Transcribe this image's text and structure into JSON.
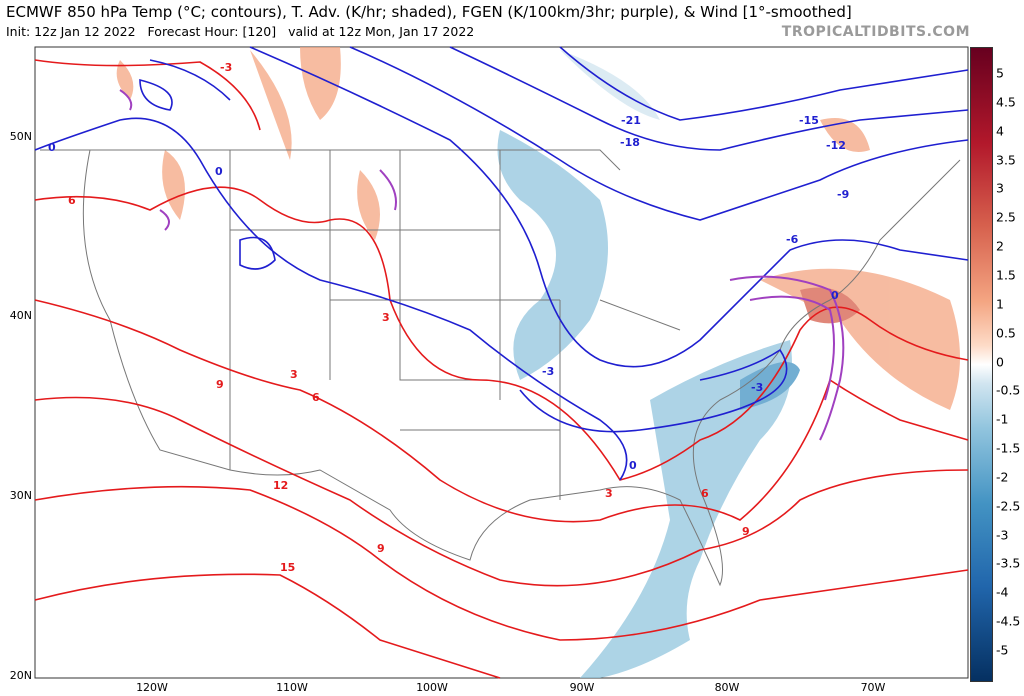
{
  "header": {
    "title": "ECMWF 850 hPa Temp (°C; contours), T. Adv. (K/hr; shaded), FGEN (K/100km/3hr; purple), & Wind [1°-smoothed]",
    "init": "Init: 12z Jan 12 2022",
    "forecast_hour": "Forecast Hour: [120]",
    "valid": "valid at 12z Mon, Jan 17 2022",
    "credit": "TROPICALTIDBITS.COM"
  },
  "map": {
    "lat_labels": [
      "50N",
      "40N",
      "30N",
      "20N"
    ],
    "lon_labels": [
      "120W",
      "110W",
      "100W",
      "90W",
      "80W",
      "70W"
    ],
    "contour_labels": [
      "-3",
      "0",
      "0",
      "6",
      "-21",
      "-18",
      "-15",
      "-12",
      "-9",
      "-6",
      "3",
      "3",
      "-3",
      "-3",
      "9",
      "6",
      "0",
      "0",
      "3",
      "6",
      "12",
      "9",
      "9",
      "15"
    ]
  },
  "colorbar": {
    "ticks": [
      "5",
      "4.5",
      "4",
      "3.5",
      "3",
      "2.5",
      "2",
      "1.5",
      "1",
      "0.5",
      "0",
      "-0.5",
      "-1",
      "-1.5",
      "-2",
      "-2.5",
      "-3",
      "-3.5",
      "-4",
      "-4.5",
      "-5"
    ]
  }
}
